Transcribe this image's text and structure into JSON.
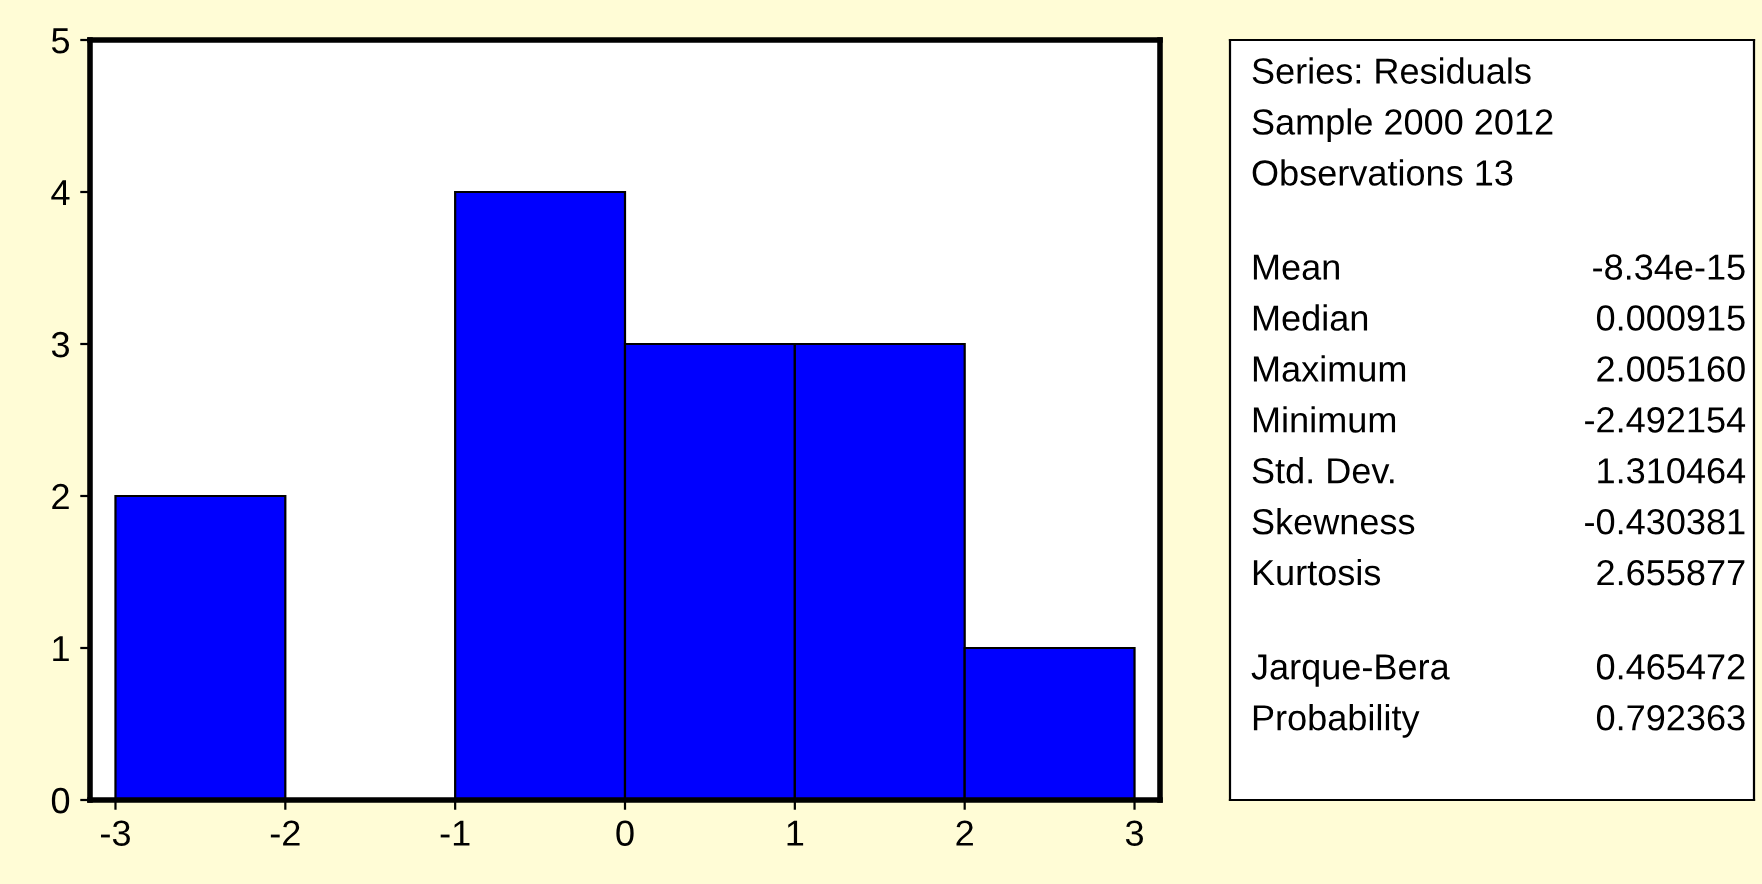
{
  "chart_data": {
    "type": "histogram",
    "bins": [
      -3,
      -2,
      -1,
      0,
      1,
      2,
      3
    ],
    "values": [
      2,
      0,
      4,
      3,
      3,
      1
    ],
    "color": "#0000ff",
    "xlim": [
      -3.15,
      3.15
    ],
    "xticks": [
      -3,
      -2,
      -1,
      0,
      1,
      2,
      3
    ],
    "ylim": [
      0,
      5
    ],
    "yticks": [
      0,
      1,
      2,
      3,
      4,
      5
    ],
    "grid": false,
    "annotations": [
      "Series: Residuals",
      "Sample 2000 2012",
      "Observations 13",
      "Mean -8.34e-15",
      "Median 0.000915",
      "Maximum 2.005160",
      "Minimum -2.492154",
      "Std. Dev. 1.310464",
      "Skewness -0.430381",
      "Kurtosis 2.655877",
      "Jarque-Bera 0.465472",
      "Probability 0.792363"
    ]
  }
}
